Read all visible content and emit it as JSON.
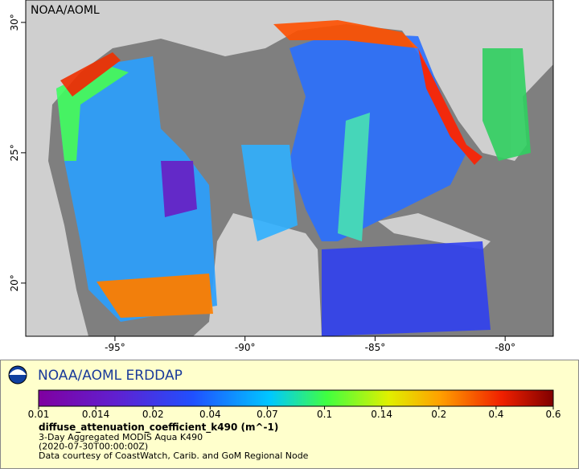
{
  "map": {
    "watermark": "NOAA/AOML",
    "xlim": [
      -98.43,
      -78.15
    ],
    "ylim": [
      17.96,
      30.86
    ],
    "xticks": [
      {
        "value": -95,
        "label": "-95°"
      },
      {
        "value": -90,
        "label": "-90°"
      },
      {
        "value": -85,
        "label": "-85°"
      },
      {
        "value": -80,
        "label": "-80°"
      }
    ],
    "yticks": [
      {
        "value": 20,
        "label": "20°"
      },
      {
        "value": 25,
        "label": "25°"
      },
      {
        "value": 30,
        "label": "30°"
      }
    ]
  },
  "legend": {
    "title": "NOAA/AOML ERDDAP",
    "colorbar_ticks": [
      0.01,
      0.014,
      0.02,
      0.04,
      0.07,
      0.1,
      0.14,
      0.2,
      0.4,
      0.6
    ],
    "variable": "diffuse_attenuation_coefficient_k490 (m^-1)",
    "lines": [
      "3-Day Aggregated MODIS Aqua K490",
      "(2020-07-30T00:00:00Z)",
      "Data courtesy of CoastWatch, Carib. and GoM Regional Node"
    ]
  }
}
